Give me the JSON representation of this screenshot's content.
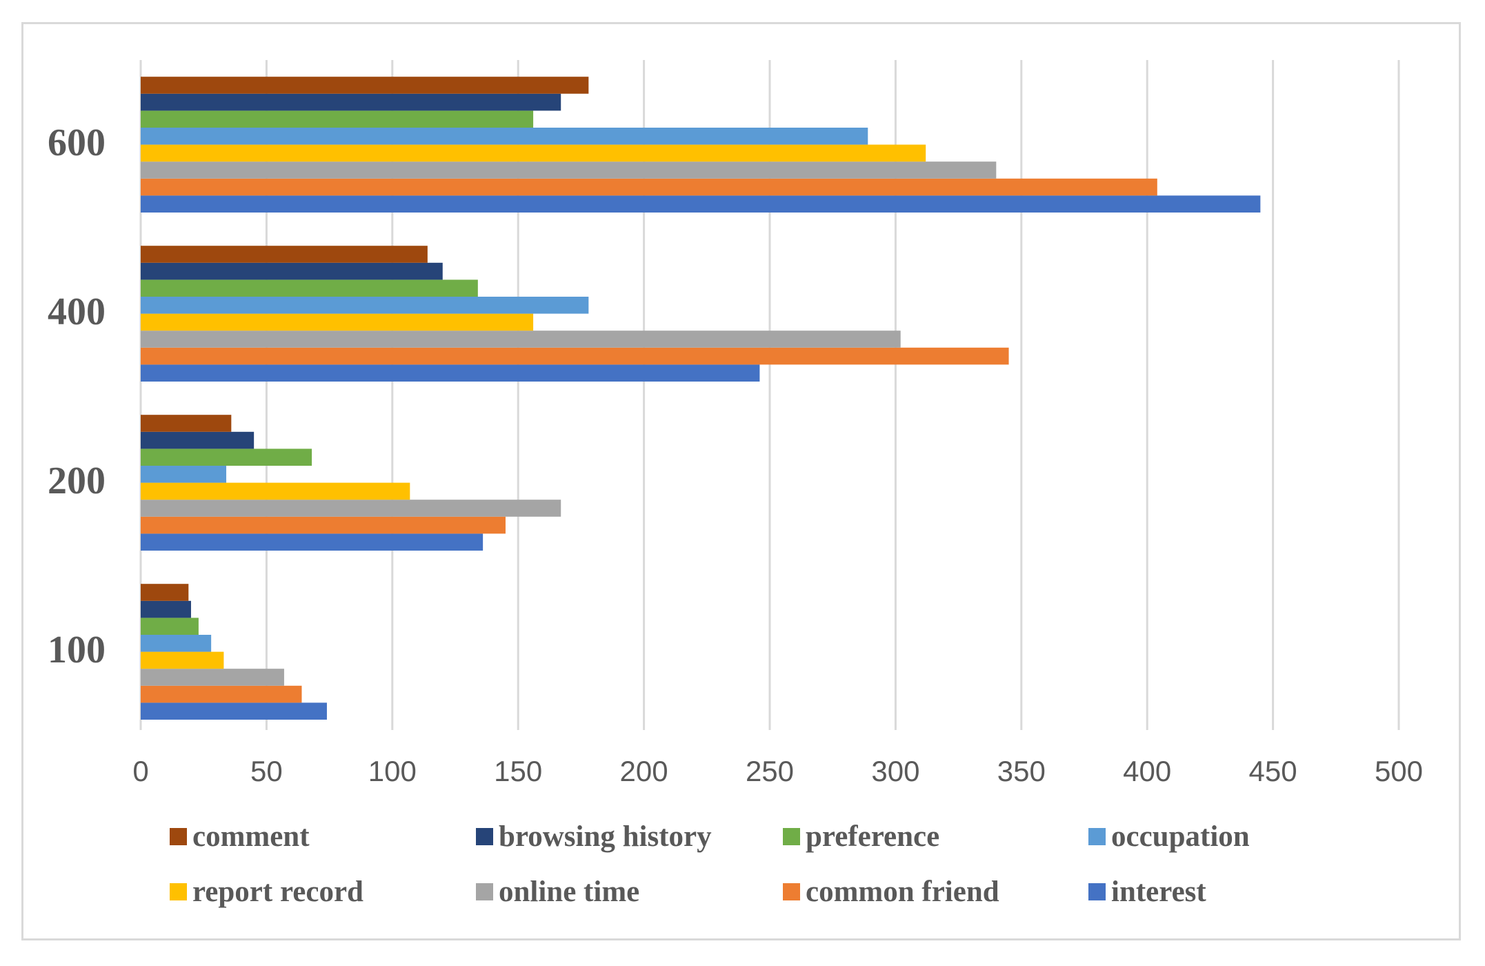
{
  "chart_data": {
    "type": "bar",
    "orientation": "horizontal",
    "title": "",
    "xlabel": "",
    "ylabel": "",
    "xlim": [
      0,
      500
    ],
    "x_ticks": [
      "0",
      "50",
      "100",
      "150",
      "200",
      "250",
      "300",
      "350",
      "400",
      "450",
      "500"
    ],
    "categories": [
      "100",
      "200",
      "400",
      "600"
    ],
    "grid": true,
    "legend_position": "bottom",
    "series": [
      {
        "name": "interest",
        "color": "#4472C4",
        "values": [
          74,
          136,
          246,
          445
        ]
      },
      {
        "name": "common friend",
        "color": "#ED7D31",
        "values": [
          64,
          145,
          345,
          404
        ]
      },
      {
        "name": "online time",
        "color": "#A5A5A5",
        "values": [
          57,
          167,
          302,
          340
        ]
      },
      {
        "name": "report record",
        "color": "#FFC000",
        "values": [
          33,
          107,
          156,
          312
        ]
      },
      {
        "name": "occupation",
        "color": "#5B9BD5",
        "values": [
          28,
          34,
          178,
          289
        ]
      },
      {
        "name": "preference",
        "color": "#70AD47",
        "values": [
          23,
          68,
          134,
          156
        ]
      },
      {
        "name": "browsing history",
        "color": "#264478",
        "values": [
          20,
          45,
          120,
          167
        ]
      },
      {
        "name": "comment",
        "color": "#9E480E",
        "values": [
          19,
          36,
          114,
          178
        ]
      }
    ],
    "legend_order": [
      "comment",
      "browsing history",
      "preference",
      "occupation",
      "report record",
      "online time",
      "common friend",
      "interest"
    ]
  }
}
